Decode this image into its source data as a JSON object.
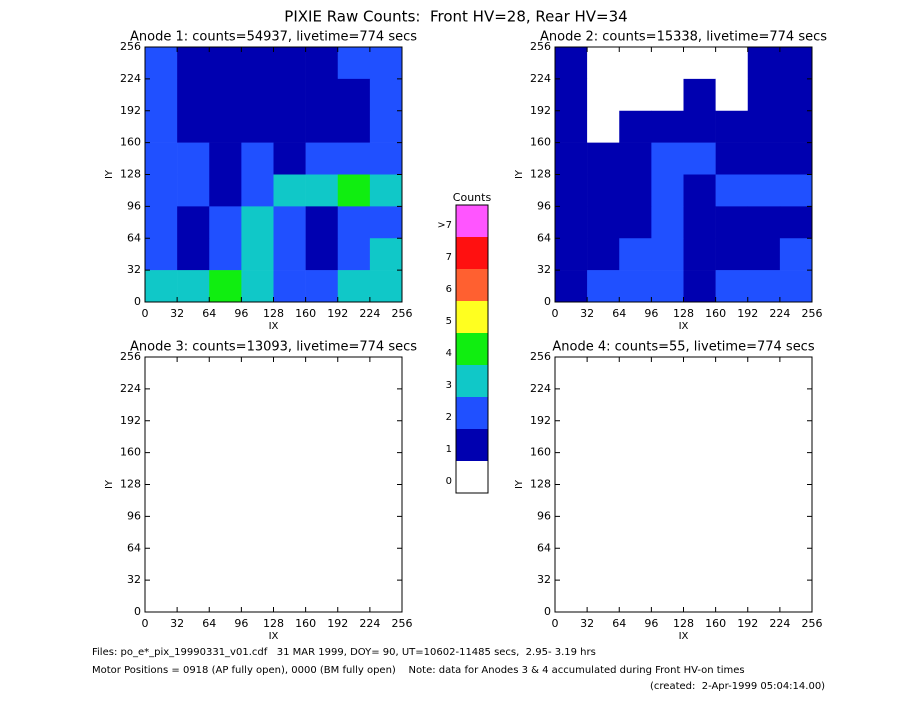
{
  "title": "PIXIE Raw Counts:  Front HV=28, Rear HV=34",
  "colorbar": {
    "title": "Counts",
    "labels": [
      ">7",
      "7",
      "6",
      "5",
      "4",
      "3",
      "2",
      "1",
      "0"
    ],
    "colors": [
      "#ff55ff",
      "#ff1010",
      "#ff6030",
      "#ffff20",
      "#10ee10",
      "#10c8c8",
      "#2050ff",
      "#0000b0",
      "#ffffff"
    ]
  },
  "chart_data": [
    {
      "type": "heatmap",
      "title": "Anode 1: counts=54937, livetime=774 secs",
      "xlabel": "IX",
      "ylabel": "IY",
      "xlim": [
        0,
        256
      ],
      "ylim": [
        0,
        256
      ],
      "xticks": [
        0,
        32,
        64,
        96,
        128,
        160,
        192,
        224,
        256
      ],
      "yticks": [
        0,
        32,
        64,
        96,
        128,
        160,
        192,
        224,
        256
      ],
      "values": [
        [
          2,
          1,
          1,
          1,
          1,
          1,
          2,
          2
        ],
        [
          2,
          1,
          1,
          1,
          1,
          1,
          1,
          2
        ],
        [
          2,
          1,
          1,
          1,
          1,
          1,
          1,
          2
        ],
        [
          2,
          2,
          1,
          2,
          1,
          2,
          2,
          2
        ],
        [
          2,
          2,
          1,
          2,
          3,
          3,
          4,
          3
        ],
        [
          2,
          1,
          2,
          3,
          2,
          1,
          2,
          2
        ],
        [
          2,
          1,
          2,
          3,
          2,
          1,
          2,
          3
        ],
        [
          3,
          3,
          4,
          3,
          2,
          2,
          3,
          3
        ]
      ]
    },
    {
      "type": "heatmap",
      "title": "Anode 2: counts=15338, livetime=774 secs",
      "xlabel": "IX",
      "ylabel": "IY",
      "xlim": [
        0,
        256
      ],
      "ylim": [
        0,
        256
      ],
      "xticks": [
        0,
        32,
        64,
        96,
        128,
        160,
        192,
        224,
        256
      ],
      "yticks": [
        0,
        32,
        64,
        96,
        128,
        160,
        192,
        224,
        256
      ],
      "values": [
        [
          1,
          0,
          0,
          0,
          0,
          0,
          1,
          1
        ],
        [
          1,
          0,
          0,
          0,
          1,
          0,
          1,
          1
        ],
        [
          1,
          0,
          1,
          1,
          1,
          1,
          1,
          1
        ],
        [
          1,
          1,
          1,
          2,
          2,
          1,
          1,
          1
        ],
        [
          1,
          1,
          1,
          2,
          1,
          2,
          2,
          2
        ],
        [
          1,
          1,
          1,
          2,
          1,
          1,
          1,
          1
        ],
        [
          1,
          1,
          2,
          2,
          1,
          1,
          1,
          2
        ],
        [
          1,
          2,
          2,
          2,
          1,
          2,
          2,
          2
        ]
      ]
    },
    {
      "type": "heatmap",
      "title": "Anode 3: counts=13093, livetime=774 secs",
      "xlabel": "IX",
      "ylabel": "IY",
      "xlim": [
        0,
        256
      ],
      "ylim": [
        0,
        256
      ],
      "xticks": [
        0,
        32,
        64,
        96,
        128,
        160,
        192,
        224,
        256
      ],
      "yticks": [
        0,
        32,
        64,
        96,
        128,
        160,
        192,
        224,
        256
      ],
      "values": [
        [
          0,
          0,
          0,
          0,
          0,
          0,
          0,
          0
        ],
        [
          0,
          0,
          0,
          0,
          0,
          0,
          0,
          0
        ],
        [
          0,
          0,
          0,
          0,
          0,
          0,
          0,
          0
        ],
        [
          0,
          0,
          0,
          0,
          0,
          0,
          0,
          0
        ],
        [
          0,
          0,
          0,
          0,
          0,
          0,
          0,
          0
        ],
        [
          0,
          0,
          0,
          0,
          0,
          0,
          0,
          0
        ],
        [
          0,
          0,
          0,
          0,
          0,
          0,
          0,
          0
        ],
        [
          0,
          0,
          0,
          0,
          0,
          0,
          0,
          0
        ]
      ]
    },
    {
      "type": "heatmap",
      "title": "Anode 4: counts=55, livetime=774 secs",
      "xlabel": "IX",
      "ylabel": "IY",
      "xlim": [
        0,
        256
      ],
      "ylim": [
        0,
        256
      ],
      "xticks": [
        0,
        32,
        64,
        96,
        128,
        160,
        192,
        224,
        256
      ],
      "yticks": [
        0,
        32,
        64,
        96,
        128,
        160,
        192,
        224,
        256
      ],
      "values": [
        [
          0,
          0,
          0,
          0,
          0,
          0,
          0,
          0
        ],
        [
          0,
          0,
          0,
          0,
          0,
          0,
          0,
          0
        ],
        [
          0,
          0,
          0,
          0,
          0,
          0,
          0,
          0
        ],
        [
          0,
          0,
          0,
          0,
          0,
          0,
          0,
          0
        ],
        [
          0,
          0,
          0,
          0,
          0,
          0,
          0,
          0
        ],
        [
          0,
          0,
          0,
          0,
          0,
          0,
          0,
          0
        ],
        [
          0,
          0,
          0,
          0,
          0,
          0,
          0,
          0
        ],
        [
          0,
          0,
          0,
          0,
          0,
          0,
          0,
          0
        ]
      ]
    }
  ],
  "footer": [
    "Files: po_e*_pix_19990331_v01.cdf   31 MAR 1999, DOY= 90, UT=10602-11485 secs,  2.95- 3.19 hrs",
    "Motor Positions = 0918 (AP fully open), 0000 (BM fully open)    Note: data for Anodes 3 & 4 accumulated during Front HV-on times",
    "(created:  2-Apr-1999 05:04:14.00)"
  ]
}
